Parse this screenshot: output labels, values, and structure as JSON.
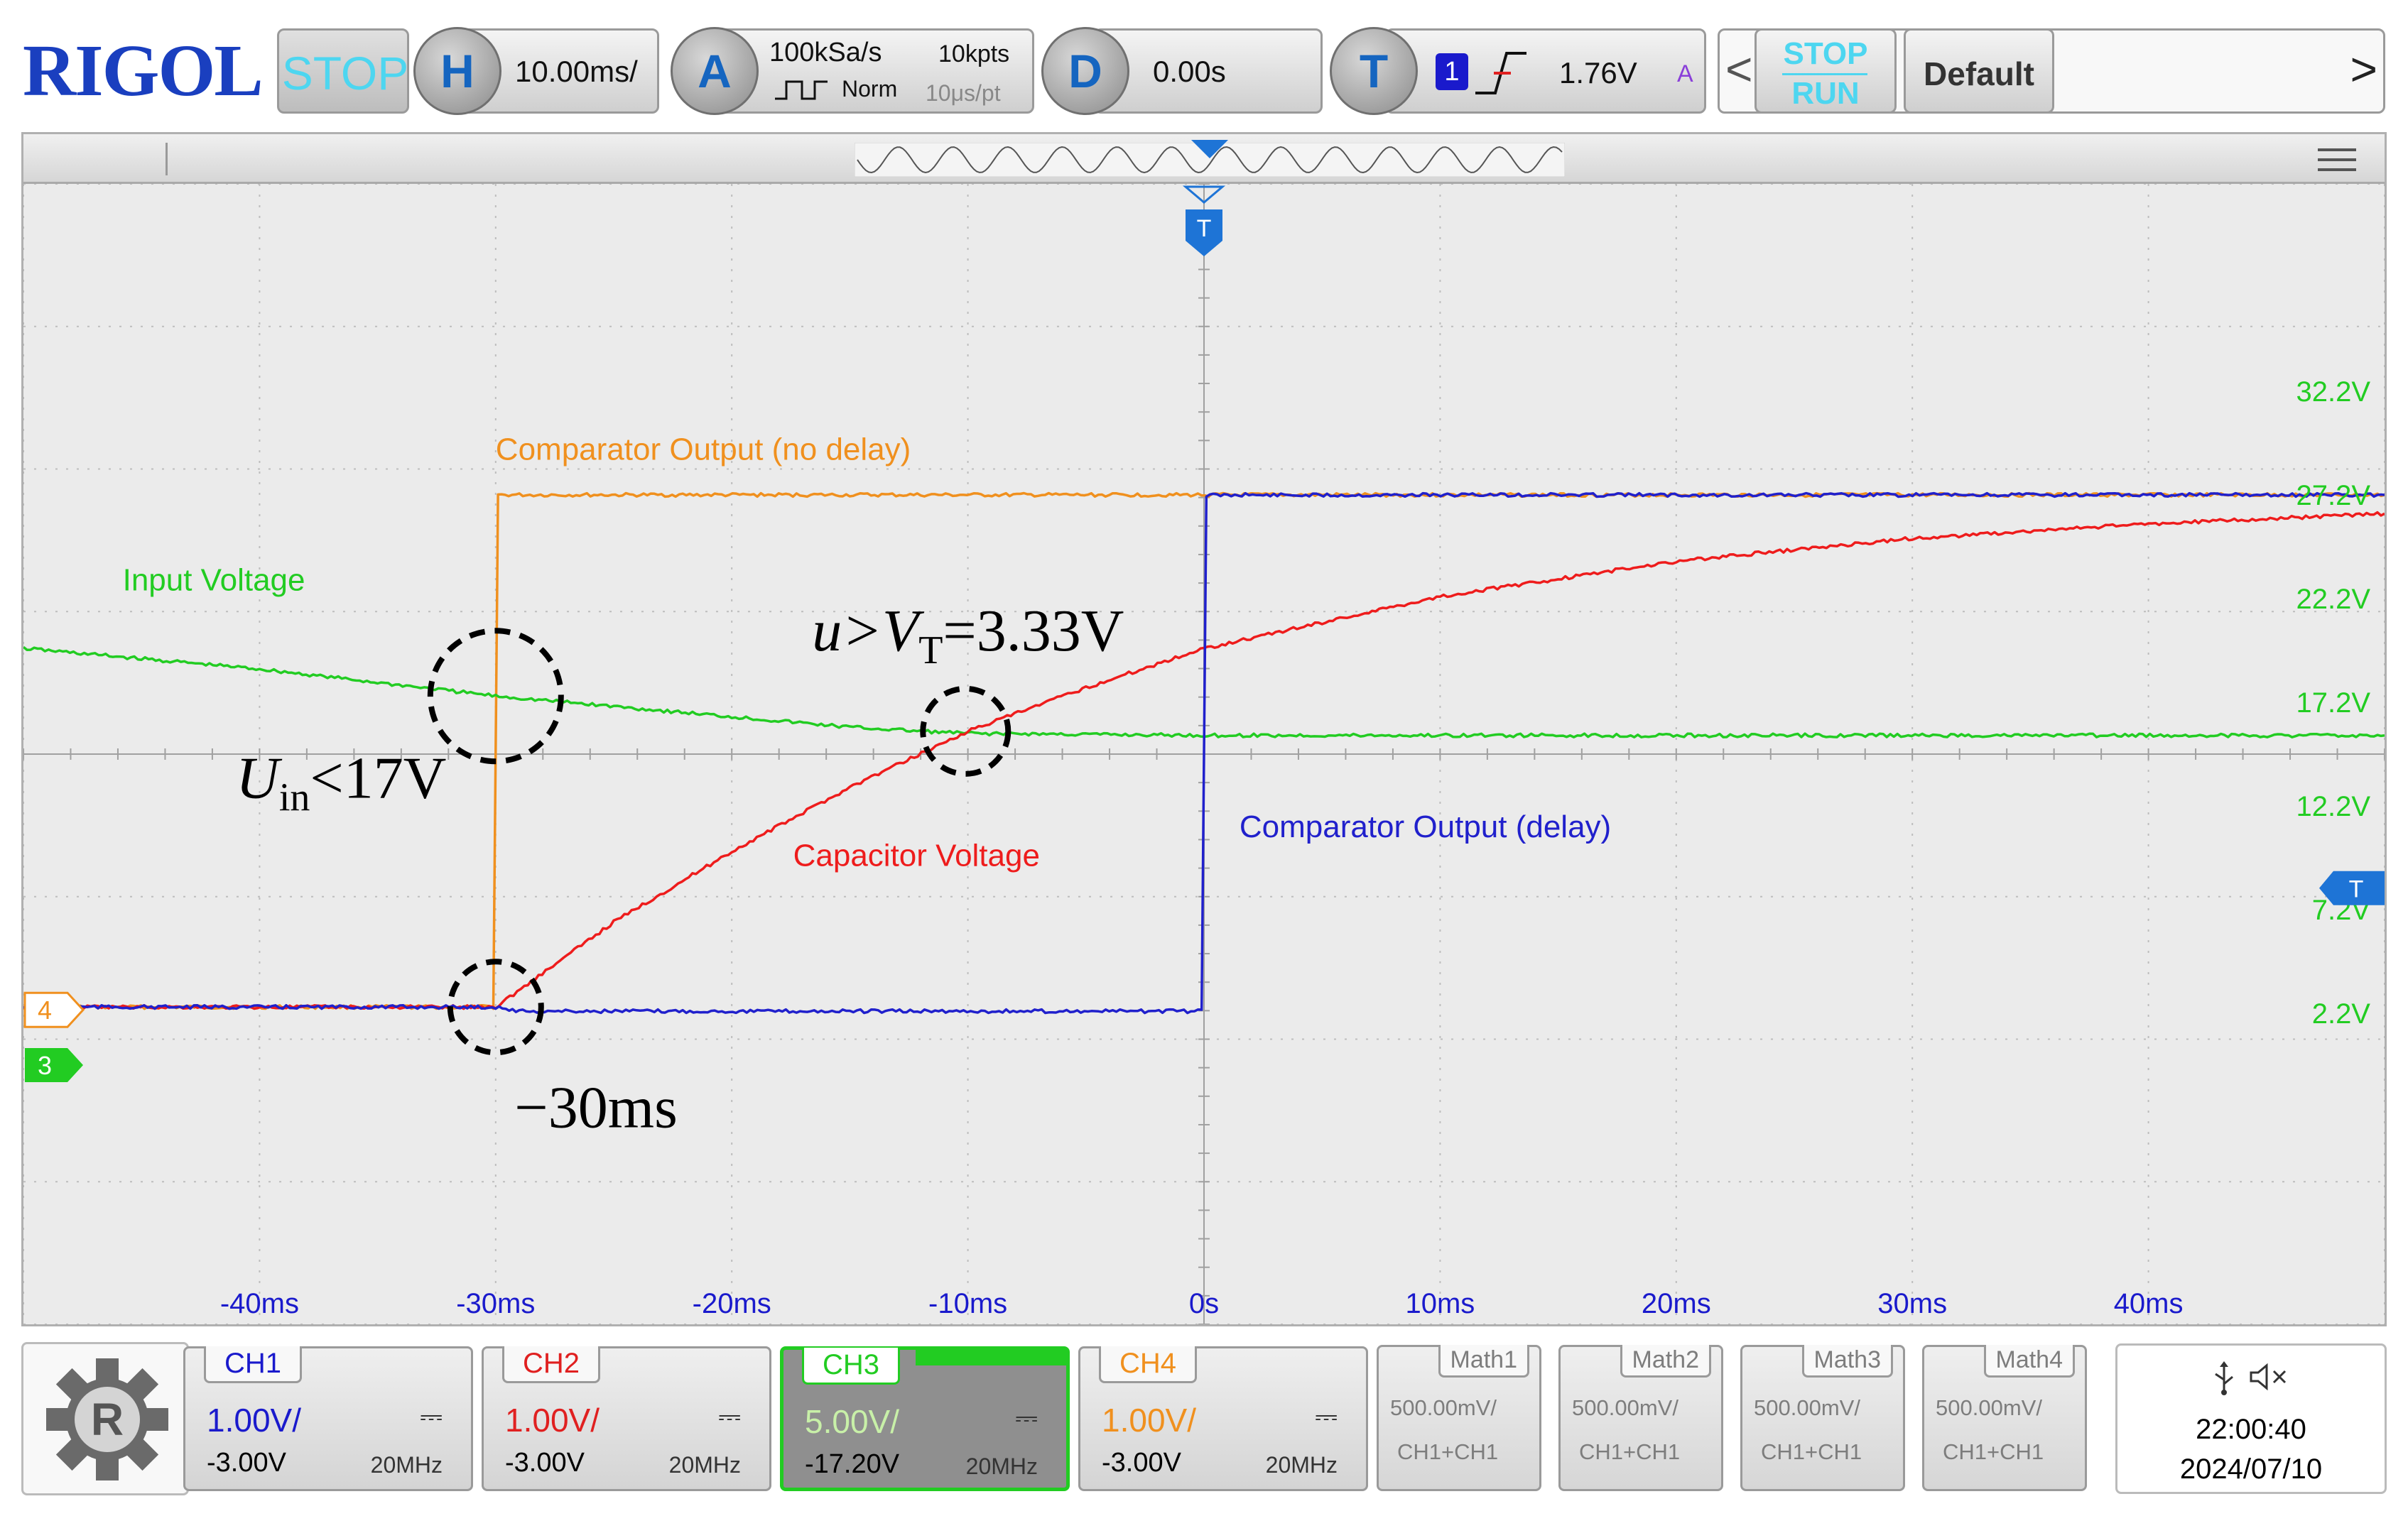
{
  "brand": "RIGOL",
  "top_bar": {
    "run_state": "STOP",
    "horizontal": {
      "key": "H",
      "scale": "10.00ms/"
    },
    "acquire": {
      "key": "A",
      "sample_rate": "100kSa/s",
      "memory_depth": "10kpts",
      "mode": "Norm",
      "time_per_point": "10μs/pt"
    },
    "delay": {
      "key": "D",
      "value": "0.00s"
    },
    "trigger": {
      "key": "T",
      "source": "1",
      "level": "1.76V",
      "sweep": "A"
    },
    "stop_run": {
      "top": "STOP",
      "bottom": "RUN"
    },
    "default_button": "Default",
    "nav_prev": "<",
    "nav_next": ">"
  },
  "screen": {
    "menu_icon": "menu-icon",
    "trigger_marker": "T",
    "left_markers": {
      "ch4": "4",
      "ch3": "3"
    },
    "right_trigger_marker": "T"
  },
  "chart_data": {
    "type": "line",
    "xlabel": "",
    "ylabel": "",
    "xlim": [
      -50,
      50
    ],
    "x_unit": "ms",
    "ylim": [
      -12.8,
      42.2
    ],
    "x_tick_labels": [
      "-40ms",
      "-30ms",
      "-20ms",
      "-10ms",
      "0s",
      "10ms",
      "20ms",
      "30ms",
      "40ms"
    ],
    "x_ticks": [
      -40,
      -30,
      -20,
      -10,
      0,
      10,
      20,
      30,
      40
    ],
    "y_tick_labels": [
      "32.2V",
      "27.2V",
      "22.2V",
      "17.2V",
      "12.2V",
      "7.2V",
      "2.2V"
    ],
    "y_ticks": [
      32.2,
      27.2,
      22.2,
      17.2,
      12.2,
      7.2,
      2.2
    ],
    "grid": true,
    "series": [
      {
        "name": "Comparator Output (no delay)",
        "color": "#f0901e",
        "x": [
          -50,
          -30.1,
          -29.9,
          50
        ],
        "y": [
          2.5,
          2.5,
          27.2,
          27.2
        ]
      },
      {
        "name": "Input Voltage",
        "color": "#22cc22",
        "x": [
          -50,
          -40,
          -30,
          -20,
          -15,
          -12,
          -10,
          0,
          50
        ],
        "y": [
          19.8,
          18.8,
          17.5,
          16.5,
          16.0,
          15.8,
          15.7,
          15.6,
          15.6
        ]
      },
      {
        "name": "Capacitor Voltage",
        "color": "#ee1c1c",
        "x": [
          -50,
          -30,
          -25,
          -20,
          -15,
          -10,
          -5,
          0,
          10,
          20,
          30,
          40,
          50
        ],
        "y": [
          2.5,
          2.5,
          6.6,
          10.0,
          13.1,
          15.8,
          17.9,
          19.8,
          22.3,
          24.0,
          25.1,
          25.8,
          26.3
        ]
      },
      {
        "name": "Comparator Output (delay)",
        "color": "#2020cc",
        "x": [
          -50,
          -30,
          -29,
          -0.1,
          0.1,
          50
        ],
        "y": [
          2.5,
          2.5,
          2.3,
          2.3,
          27.2,
          27.2
        ]
      }
    ],
    "annotations": [
      {
        "id": "vt",
        "text_main": "u>V",
        "text_sub": "T",
        "text_tail": "=3.33V"
      },
      {
        "id": "uin",
        "text_main": "U",
        "text_sub": "in",
        "text_tail": "<17V"
      },
      {
        "id": "t30",
        "text": "−30ms"
      }
    ]
  },
  "channels": [
    {
      "name": "CH1",
      "scale": "1.00V/",
      "offset": "-3.00V",
      "bandwidth": "20MHz",
      "color": "#1a1acc",
      "coupling": "⎓"
    },
    {
      "name": "CH2",
      "scale": "1.00V/",
      "offset": "-3.00V",
      "bandwidth": "20MHz",
      "color": "#e02020",
      "coupling": "⎓"
    },
    {
      "name": "CH3",
      "scale": "5.00V/",
      "offset": "-17.20V",
      "bandwidth": "20MHz",
      "color": "#22cc22",
      "coupling": "⎓"
    },
    {
      "name": "CH4",
      "scale": "1.00V/",
      "offset": "-3.00V",
      "bandwidth": "20MHz",
      "color": "#f0901e",
      "coupling": "⎓"
    }
  ],
  "math": [
    {
      "name": "Math1",
      "scale": "500.00mV/",
      "source": "CH1+CH1"
    },
    {
      "name": "Math2",
      "scale": "500.00mV/",
      "source": "CH1+CH1"
    },
    {
      "name": "Math3",
      "scale": "500.00mV/",
      "source": "CH1+CH1"
    },
    {
      "name": "Math4",
      "scale": "500.00mV/",
      "source": "CH1+CH1"
    }
  ],
  "status": {
    "time": "22:00:40",
    "date": "2024/07/10",
    "usb_icon": "usb-icon",
    "speaker_icon": "mute-icon"
  }
}
